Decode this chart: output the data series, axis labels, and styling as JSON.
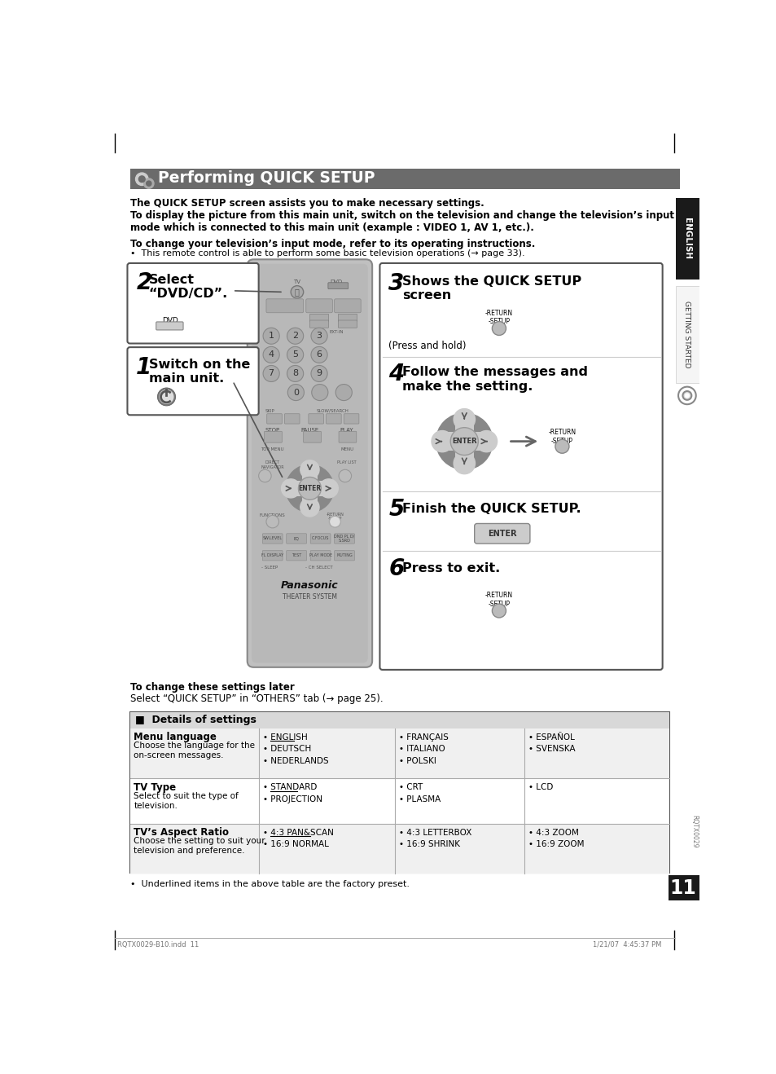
{
  "title": "Performing QUICK SETUP",
  "header_bg": "#6b6b6b",
  "page_bg": "#ffffff",
  "para1": "The QUICK SETUP screen assists you to make necessary settings.",
  "para2": "To display the picture from this main unit, switch on the television and change the television’s input\nmode which is connected to this main unit (example : VIDEO 1, AV 1, etc.).",
  "para3": "To change your television’s input mode, refer to its operating instructions.",
  "para3b": "•  This remote control is able to perform some basic television operations (→ page 33).",
  "step2_num": "2",
  "step2_text": "Select\n“DVD/CD”.",
  "step1_num": "1",
  "step1_text": "Switch on the\nmain unit.",
  "step3_num": "3",
  "step3_text": "Shows the QUICK SETUP\nscreen",
  "step3_sub": "(Press and hold)",
  "step4_num": "4",
  "step4_text": "Follow the messages and\nmake the setting.",
  "step5_num": "5",
  "step5_text": "Finish the QUICK SETUP.",
  "step6_num": "6",
  "step6_text": "Press to exit.",
  "footer_bold": "To change these settings later",
  "footer_text": "Select “QUICK SETUP” in “OTHERS” tab (→ page 25).",
  "table_header": "■  Details of settings",
  "table_rows": [
    {
      "label_bold": "Menu language",
      "label_text": "Choose the language for the\non-screen messages.",
      "col1": [
        "• ENGLISH",
        "• DEUTSCH",
        "• NEDERLANDS"
      ],
      "col2": [
        "• FRANÇAIS",
        "• ITALIANO",
        "• POLSKI"
      ],
      "col3": [
        "• ESPAÑOL",
        "• SVENSKA"
      ],
      "underline": [
        [
          true,
          false,
          false
        ],
        [
          false,
          false,
          false
        ],
        [
          false,
          false
        ]
      ]
    },
    {
      "label_bold": "TV Type",
      "label_text": "Select to suit the type of\ntelevision.",
      "col1": [
        "• STANDARD",
        "• PROJECTION"
      ],
      "col2": [
        "• CRT",
        "• PLASMA"
      ],
      "col3": [
        "• LCD"
      ],
      "underline": [
        [
          true,
          false
        ],
        [
          false,
          false
        ],
        [
          false
        ]
      ]
    },
    {
      "label_bold": "TV’s Aspect Ratio",
      "label_text": "Choose the setting to suit your\ntelevision and preference.",
      "col1": [
        "• 4:3 PAN&SCAN",
        "• 16:9 NORMAL"
      ],
      "col2": [
        "• 4:3 LETTERBOX",
        "• 16:9 SHRINK"
      ],
      "col3": [
        "• 4:3 ZOOM",
        "• 16:9 ZOOM"
      ],
      "underline": [
        [
          true,
          false
        ],
        [
          false,
          false
        ],
        [
          false,
          false
        ]
      ]
    }
  ],
  "table_note": "•  Underlined items in the above table are the factory preset.",
  "sidebar_eng": "ENGLISH",
  "sidebar_gs": "GETTING STARTED",
  "page_num": "11",
  "footer_l": "RQTX0029-B10.indd  11",
  "footer_r": "1/21/07  4:45:37 PM",
  "rqtx": "RQTX0029",
  "remote_body": "#b8b8b8",
  "remote_dark": "#888888",
  "remote_btn": "#aaaaaa",
  "remote_btn_dark": "#999999"
}
